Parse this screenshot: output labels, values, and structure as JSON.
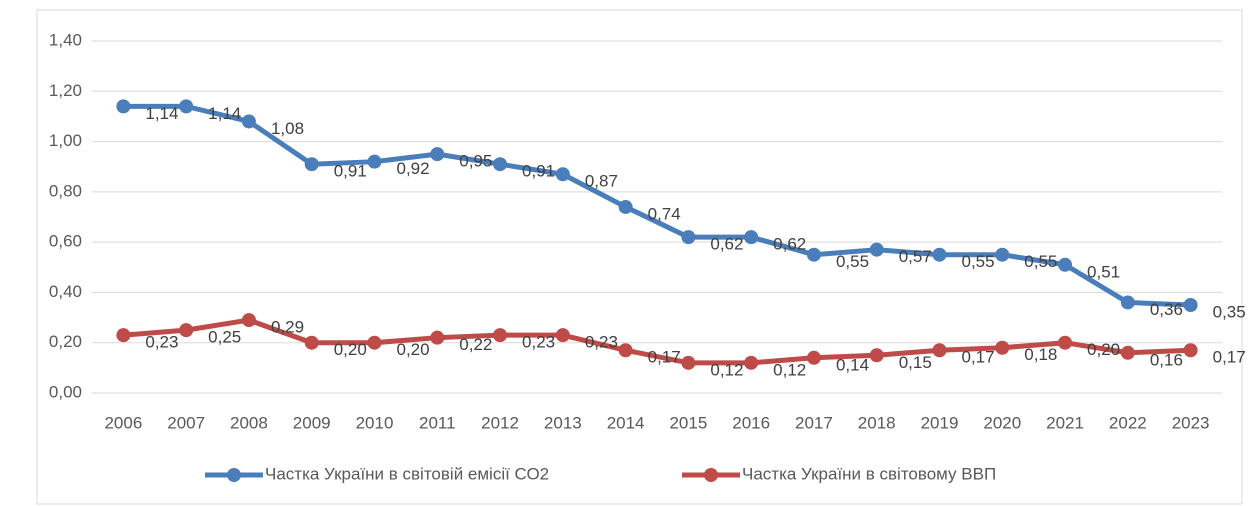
{
  "chart_data": {
    "type": "line",
    "categories": [
      "2006",
      "2007",
      "2008",
      "2009",
      "2010",
      "2011",
      "2012",
      "2013",
      "2014",
      "2015",
      "2016",
      "2017",
      "2018",
      "2019",
      "2020",
      "2021",
      "2022",
      "2023"
    ],
    "series": [
      {
        "name": "Частка України в світовій емісії СО2",
        "color": "#4a7ebb",
        "values": [
          1.14,
          1.14,
          1.08,
          0.91,
          0.92,
          0.95,
          0.91,
          0.87,
          0.74,
          0.62,
          0.62,
          0.55,
          0.57,
          0.55,
          0.55,
          0.51,
          0.36,
          0.35
        ],
        "value_labels": [
          "1,14",
          "1,14",
          "1,08",
          "0,91",
          "0,92",
          "0,95",
          "0,91",
          "0,87",
          "0,74",
          "0,62",
          "0,62",
          "0,55",
          "0,57",
          "0,55",
          "0,55",
          "0,51",
          "0,36",
          "0,35"
        ]
      },
      {
        "name": "Частка України в світовому ВВП",
        "color": "#be4b48",
        "values": [
          0.23,
          0.25,
          0.29,
          0.2,
          0.2,
          0.22,
          0.23,
          0.23,
          0.17,
          0.12,
          0.12,
          0.14,
          0.15,
          0.17,
          0.18,
          0.2,
          0.16,
          0.17
        ],
        "value_labels": [
          "0,23",
          "0,25",
          "0,29",
          "0,20",
          "0,20",
          "0,22",
          "0,23",
          "0,23",
          "0,17",
          "0,12",
          "0,12",
          "0,14",
          "0,15",
          "0,17",
          "0,18",
          "0,20",
          "0,16",
          "0,17"
        ]
      }
    ],
    "ylim": [
      0,
      1.4
    ],
    "yticks": [
      {
        "value": 0,
        "label": "0,00"
      },
      {
        "value": 0.2,
        "label": "0,20"
      },
      {
        "value": 0.4,
        "label": "0,40"
      },
      {
        "value": 0.6,
        "label": "0,60"
      },
      {
        "value": 0.8,
        "label": "0,80"
      },
      {
        "value": 1.0,
        "label": "1,00"
      },
      {
        "value": 1.2,
        "label": "1,20"
      },
      {
        "value": 1.4,
        "label": "1,40"
      }
    ],
    "grid": true,
    "legend": "bottom"
  }
}
